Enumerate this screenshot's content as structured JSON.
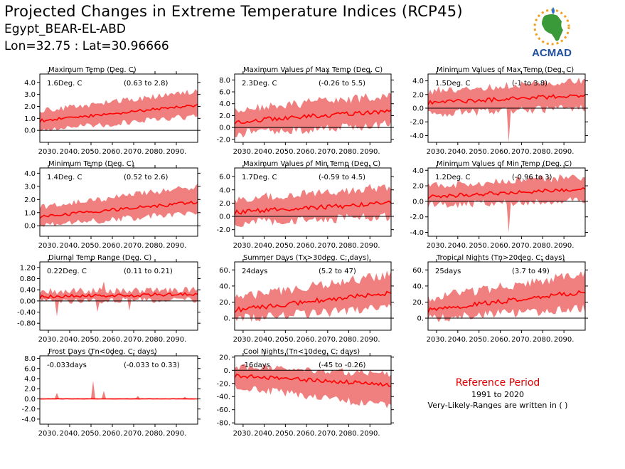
{
  "header": {
    "title": "Projected Changes in Extreme Temperature Indices (RCP45)",
    "location": "Egypt_BEAR-EL-ABD",
    "coords": "Lon=32.75 : Lat=30.96666"
  },
  "logo": {
    "text": "ACMAD",
    "icon": "africa-sun-drop-logo",
    "colors": {
      "africa": "#3a9a3a",
      "text": "#1f4e9e",
      "sun": "#f0a020",
      "drop": "#2a6fd0"
    }
  },
  "reference": {
    "title": "Reference Period",
    "years": "1991 to 2020",
    "note": "Very-Likely-Ranges are written in ( )"
  },
  "colors": {
    "band": "#f08080",
    "line": "#ff0000",
    "zero": "#000000"
  },
  "x_ticks": [
    "2030.",
    "2040.",
    "2050.",
    "2060.",
    "2070.",
    "2080.",
    "2090."
  ],
  "chart_data": [
    {
      "type": "area",
      "title": "Maximum Temp (Deg. C)",
      "summary": "1.6Deg. C",
      "range": "(0.63 to 2.8)",
      "ylim": [
        -1.0,
        4.7
      ],
      "yticks": [
        "4.0",
        "3.0",
        "2.0",
        "1.0",
        "0.0"
      ],
      "ytick_values": [
        4,
        3,
        2,
        1,
        0
      ],
      "x": [
        2026,
        2100
      ],
      "mean_start": 0.8,
      "mean_end": 2.1,
      "lower_start": 0.0,
      "lower_end": 1.2,
      "upper_start": 1.6,
      "upper_end": 3.3,
      "noise": 0.25,
      "spikes": []
    },
    {
      "type": "area",
      "title": "Maximum Values of Max Temp (Deg. C)",
      "summary": "2.3Deg. C",
      "range": "(-0.26 to 5.5)",
      "ylim": [
        -2.5,
        9.0
      ],
      "yticks": [
        "8.0",
        "6.0",
        "4.0",
        "2.0",
        "0.0",
        "-2.0"
      ],
      "ytick_values": [
        8,
        6,
        4,
        2,
        0,
        -2
      ],
      "x": [
        2026,
        2100
      ],
      "mean_start": 1.0,
      "mean_end": 2.8,
      "lower_start": -1.0,
      "lower_end": 0.5,
      "upper_start": 3.0,
      "upper_end": 5.5,
      "noise": 0.8,
      "spikes": []
    },
    {
      "type": "area",
      "title": "Minimum Values of Max Temp (Deg. C)",
      "summary": "1.5Deg. C",
      "range": "(-1 to 3.8)",
      "ylim": [
        -5.0,
        5.0
      ],
      "yticks": [
        "4.0",
        "2.0",
        "0.0",
        "-2.0",
        "-4.0"
      ],
      "ytick_values": [
        4,
        2,
        0,
        -2,
        -4
      ],
      "x": [
        2026,
        2100
      ],
      "mean_start": 0.8,
      "mean_end": 1.9,
      "lower_start": -0.8,
      "lower_end": 0.0,
      "upper_start": 2.5,
      "upper_end": 4.0,
      "noise": 0.6,
      "spikes": [
        [
          2064,
          -5.0
        ]
      ]
    },
    {
      "type": "area",
      "title": "Minimum Temp (Deg. C)",
      "summary": "1.4Deg. C",
      "range": "(0.52 to 2.6)",
      "ylim": [
        -0.8,
        4.4
      ],
      "yticks": [
        "4.0",
        "3.0",
        "2.0",
        "1.0",
        "0.0"
      ],
      "ytick_values": [
        4,
        3,
        2,
        1,
        0
      ],
      "x": [
        2026,
        2100
      ],
      "mean_start": 0.7,
      "mean_end": 1.8,
      "lower_start": 0.0,
      "lower_end": 1.0,
      "upper_start": 1.4,
      "upper_end": 3.0,
      "noise": 0.25,
      "spikes": []
    },
    {
      "type": "area",
      "title": "Maximum Values of Min Temp (Deg. C)",
      "summary": "1.7Deg. C",
      "range": "(-0.59 to 4.5)",
      "ylim": [
        -3.0,
        7.3
      ],
      "yticks": [
        "6.0",
        "4.0",
        "2.0",
        "0.0",
        "-2.0"
      ],
      "ytick_values": [
        6,
        4,
        2,
        0,
        -2
      ],
      "x": [
        2026,
        2100
      ],
      "mean_start": 0.6,
      "mean_end": 2.0,
      "lower_start": -1.0,
      "lower_end": 0.0,
      "upper_start": 2.5,
      "upper_end": 4.5,
      "noise": 0.7,
      "spikes": []
    },
    {
      "type": "area",
      "title": "Minimum Values of Min Temp (Deg. C)",
      "summary": "1.2Deg. C",
      "range": "(-0.96 to 3)",
      "ylim": [
        -4.5,
        4.3
      ],
      "yticks": [
        "4.0",
        "2.0",
        "0.0",
        "-2.0",
        "-4.0"
      ],
      "ytick_values": [
        4,
        2,
        0,
        -2,
        -4
      ],
      "x": [
        2026,
        2100
      ],
      "mean_start": 0.6,
      "mean_end": 1.6,
      "lower_start": -0.5,
      "lower_end": 0.2,
      "upper_start": 2.0,
      "upper_end": 3.2,
      "noise": 0.5,
      "spikes": [
        [
          2064,
          -4.0
        ]
      ]
    },
    {
      "type": "area",
      "title": "Diurnal Temp Range (Deg. C)",
      "summary": "0.22Deg. C",
      "range": "(0.11 to 0.21)",
      "ylim": [
        -1.05,
        1.4
      ],
      "yticks": [
        "1.20",
        "0.80",
        "0.40",
        "0.00",
        "-0.40",
        "-0.80"
      ],
      "ytick_values": [
        1.2,
        0.8,
        0.4,
        0.0,
        -0.4,
        -0.8
      ],
      "x": [
        2026,
        2100
      ],
      "mean_start": 0.15,
      "mean_end": 0.25,
      "lower_start": 0.0,
      "lower_end": 0.05,
      "upper_start": 0.35,
      "upper_end": 0.4,
      "noise": 0.12,
      "spikes": [
        [
          2034,
          -0.55
        ],
        [
          2053,
          -0.4
        ],
        [
          2056,
          0.7
        ],
        [
          2068,
          -0.35
        ]
      ]
    },
    {
      "type": "area",
      "title": "Summer Days (Tx>30deg. C; days)",
      "summary": "24days",
      "range": "(5.2 to 47)",
      "ylim": [
        -15,
        70
      ],
      "yticks": [
        "60.",
        "40.",
        "20.",
        "0."
      ],
      "ytick_values": [
        60,
        40,
        20,
        0
      ],
      "x": [
        2026,
        2100
      ],
      "mean_start": 10,
      "mean_end": 32,
      "lower_start": 0,
      "lower_end": 12,
      "upper_start": 25,
      "upper_end": 55,
      "noise": 6,
      "spikes": []
    },
    {
      "type": "area",
      "title": "Tropical Nights (Tn>20deg. C; days)",
      "summary": "25days",
      "range": "(3.7 to 49)",
      "ylim": [
        -15,
        70
      ],
      "yticks": [
        "60.",
        "40.",
        "20.",
        "0."
      ],
      "ytick_values": [
        60,
        40,
        20,
        0
      ],
      "x": [
        2026,
        2100
      ],
      "mean_start": 10,
      "mean_end": 33,
      "lower_start": 0,
      "lower_end": 12,
      "upper_start": 25,
      "upper_end": 55,
      "noise": 6,
      "spikes": []
    },
    {
      "type": "area",
      "title": "Frost Days (Tn<0deg. C; days)",
      "summary": "-0.033days",
      "range": "(-0.033 to 0.33)",
      "ylim": [
        -5.0,
        8.5
      ],
      "yticks": [
        "8.0",
        "6.0",
        "4.0",
        "2.0",
        "0.0",
        "-2.0",
        "-4.0"
      ],
      "ytick_values": [
        8,
        6,
        4,
        2,
        0,
        -2,
        -4
      ],
      "x": [
        2026,
        2100
      ],
      "mean_start": 0.0,
      "mean_end": 0.0,
      "lower_start": 0.0,
      "lower_end": 0.0,
      "upper_start": 0.1,
      "upper_end": 0.05,
      "noise": 0.05,
      "spikes": [
        [
          2034,
          1.2
        ],
        [
          2051,
          3.6
        ],
        [
          2056,
          1.6
        ],
        [
          2072,
          0.6
        ],
        [
          2094,
          0.4
        ]
      ]
    },
    {
      "type": "area",
      "title": "Cool Nights (Tn<10deg. C; days)",
      "summary": "-16days",
      "range": "(-45 to -0.26)",
      "ylim": [
        -82,
        22
      ],
      "yticks": [
        "20.",
        "0.",
        "-20.",
        "-40.",
        "-60.",
        "-80."
      ],
      "ytick_values": [
        20,
        0,
        -20,
        -40,
        -60,
        -80
      ],
      "x": [
        2026,
        2100
      ],
      "mean_start": -8,
      "mean_end": -22,
      "lower_start": -25,
      "lower_end": -55,
      "upper_start": 5,
      "upper_end": -5,
      "noise": 6,
      "spikes": []
    }
  ]
}
